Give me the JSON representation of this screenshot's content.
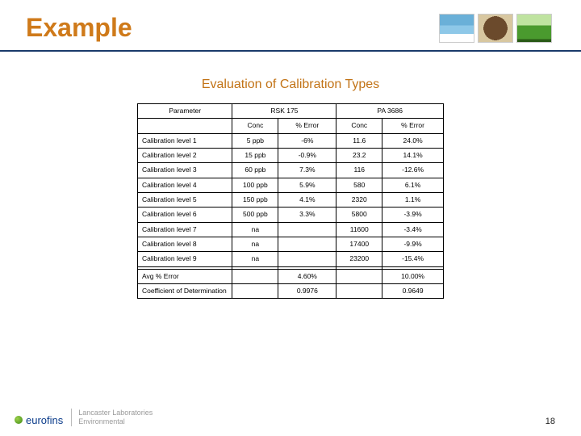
{
  "title": "Example",
  "subtitle": "Evaluation of Calibration Types",
  "colors": {
    "title": "#cf7a1a",
    "subtitle": "#c27316",
    "rule": "#1a3a6a",
    "table_border": "#000000",
    "background": "#ffffff",
    "footer_logo": "#0a3b8a",
    "footer_text": "#9a9a9a"
  },
  "table": {
    "header_top": {
      "parameter": "Parameter",
      "rsk": "RSK 175",
      "pa": "PA 3686"
    },
    "header_sub": {
      "conc1": "Conc",
      "err1": "% Error",
      "conc2": "Conc",
      "err2": "% Error"
    },
    "rows": [
      {
        "param": "Calibration level 1",
        "conc1": "5 ppb",
        "err1": "-6%",
        "conc2": "11.6",
        "err2": "24.0%"
      },
      {
        "param": "Calibration level 2",
        "conc1": "15 ppb",
        "err1": "-0.9%",
        "conc2": "23.2",
        "err2": "14.1%"
      },
      {
        "param": "Calibration level 3",
        "conc1": "60 ppb",
        "err1": "7.3%",
        "conc2": "116",
        "err2": "-12.6%"
      },
      {
        "param": "Calibration level 4",
        "conc1": "100 ppb",
        "err1": "5.9%",
        "conc2": "580",
        "err2": "6.1%"
      },
      {
        "param": "Calibration level 5",
        "conc1": "150 ppb",
        "err1": "4.1%",
        "conc2": "2320",
        "err2": "1.1%"
      },
      {
        "param": "Calibration level 6",
        "conc1": "500 ppb",
        "err1": "3.3%",
        "conc2": "5800",
        "err2": "-3.9%"
      },
      {
        "param": "Calibration level 7",
        "conc1": "na",
        "err1": "",
        "conc2": "11600",
        "err2": "-3.4%"
      },
      {
        "param": "Calibration level 8",
        "conc1": "na",
        "err1": "",
        "conc2": "17400",
        "err2": "-9.9%"
      },
      {
        "param": "Calibration level 9",
        "conc1": "na",
        "err1": "",
        "conc2": "23200",
        "err2": "-15.4%"
      }
    ],
    "summary": [
      {
        "param": "Avg % Error",
        "err1": "4.60%",
        "err2": "10.00%"
      },
      {
        "param": "Coefficient of Determination",
        "err1": "0.9976",
        "err2": "0.9649"
      }
    ]
  },
  "footer": {
    "logo": "eurofins",
    "sub1": "Lancaster Laboratories",
    "sub2": "Environmental",
    "page": "18"
  }
}
